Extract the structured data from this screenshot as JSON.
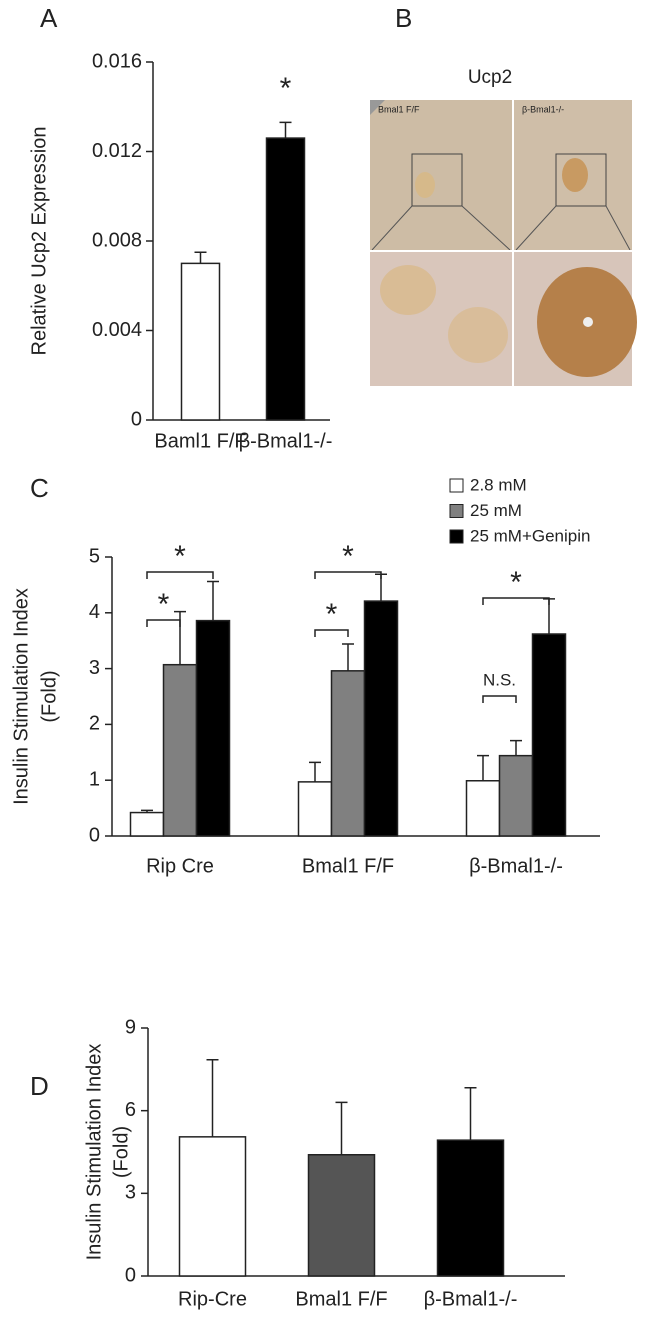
{
  "chart_data": [
    {
      "type": "bar",
      "panel_label": "A",
      "ylabel": "Relative Ucp2 Expression",
      "categories": [
        "Baml1 F/F",
        "β-Bmal1-/-"
      ],
      "values": [
        0.007,
        0.0126
      ],
      "errors": [
        0.0005,
        0.0007
      ],
      "colors": [
        "#ffffff",
        "#000000"
      ],
      "ylim": [
        0,
        0.016
      ],
      "yticks": [
        0,
        0.004,
        0.008,
        0.012,
        0.016
      ],
      "annotations": [
        "*"
      ]
    },
    {
      "type": "grouped_bar",
      "panel_label": "C",
      "ylabel": [
        "Insulin Stimulation Index",
        "(Fold)"
      ],
      "categories": [
        "Rip Cre",
        "Bmal1 F/F",
        "β-Bmal1-/-"
      ],
      "series": [
        {
          "name": "2.8 mM",
          "color": "#ffffff",
          "values": [
            0.42,
            0.97,
            0.99
          ],
          "errors": [
            0.04,
            0.35,
            0.45
          ]
        },
        {
          "name": "25 mM",
          "color": "#808080",
          "values": [
            3.07,
            2.96,
            1.44
          ],
          "errors": [
            0.95,
            0.48,
            0.27
          ]
        },
        {
          "name": "25 mM+Genipin",
          "color": "#000000",
          "values": [
            3.86,
            4.21,
            3.62
          ],
          "errors": [
            0.7,
            0.48,
            0.63
          ]
        }
      ],
      "ylim": [
        0,
        5
      ],
      "yticks": [
        0,
        1,
        2,
        3,
        4,
        5
      ],
      "legend": "top-right",
      "annotations": [
        "*",
        "*",
        "*",
        "*",
        "N.S.",
        "*"
      ]
    },
    {
      "type": "bar",
      "panel_label": "D",
      "ylabel": [
        "Insulin Stimulation Index",
        "(Fold)"
      ],
      "categories": [
        "Rip-Cre",
        "Bmal1 F/F",
        "β-Bmal1-/-"
      ],
      "values": [
        5.05,
        4.4,
        4.93
      ],
      "errors": [
        2.8,
        1.9,
        1.9
      ],
      "colors": [
        "#ffffff",
        "#555555",
        "#000000"
      ],
      "ylim": [
        0,
        9
      ],
      "yticks": [
        0,
        3,
        6,
        9
      ]
    }
  ],
  "figure_b": {
    "panel_label": "B",
    "title": "Ucp2",
    "labels": [
      "Bmal1 F/F",
      "β-Bmal1-/-"
    ]
  }
}
